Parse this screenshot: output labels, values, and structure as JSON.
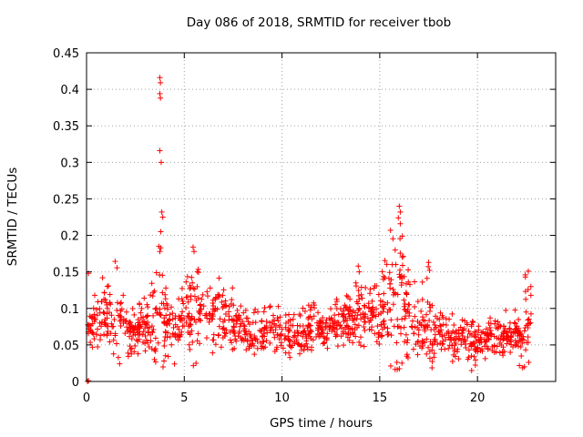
{
  "chart_data": {
    "type": "scatter",
    "title": "Day 086 of 2018, SRMTID for receiver tbob",
    "xlabel": "GPS time / hours",
    "ylabel": "SRMTID / TECUs",
    "xlim": [
      0,
      24
    ],
    "ylim": [
      0,
      0.45
    ],
    "xticks": [
      "0",
      "5",
      "10",
      "15",
      "20"
    ],
    "xtick_values": [
      0,
      5,
      10,
      15,
      20
    ],
    "yticks": [
      "0",
      "0.05",
      "0.1",
      "0.15",
      "0.2",
      "0.25",
      "0.3",
      "0.35",
      "0.4",
      "0.45"
    ],
    "ytick_values": [
      0,
      0.05,
      0.1,
      0.15,
      0.2,
      0.25,
      0.3,
      0.35,
      0.4,
      0.45
    ],
    "grid": true,
    "marker": "+",
    "marker_color": "#ff0000",
    "x_span": [
      0.05,
      22.75
    ],
    "profile": [
      [
        0.0,
        0.07,
        0.09
      ],
      [
        0.5,
        0.08,
        0.15
      ],
      [
        1.0,
        0.085,
        0.14
      ],
      [
        1.5,
        0.085,
        0.17
      ],
      [
        2.0,
        0.07,
        0.13
      ],
      [
        2.5,
        0.065,
        0.1
      ],
      [
        3.0,
        0.075,
        0.12
      ],
      [
        3.5,
        0.085,
        0.21
      ],
      [
        3.8,
        0.09,
        0.23
      ],
      [
        4.0,
        0.07,
        0.14
      ],
      [
        4.5,
        0.075,
        0.12
      ],
      [
        5.0,
        0.08,
        0.13
      ],
      [
        5.5,
        0.085,
        0.18
      ],
      [
        6.0,
        0.08,
        0.14
      ],
      [
        6.5,
        0.085,
        0.155
      ],
      [
        7.0,
        0.085,
        0.15
      ],
      [
        7.5,
        0.08,
        0.14
      ],
      [
        8.0,
        0.065,
        0.1
      ],
      [
        8.5,
        0.06,
        0.1
      ],
      [
        9.0,
        0.065,
        0.1
      ],
      [
        9.5,
        0.07,
        0.11
      ],
      [
        10.0,
        0.06,
        0.1
      ],
      [
        10.5,
        0.055,
        0.09
      ],
      [
        11.0,
        0.06,
        0.1
      ],
      [
        11.5,
        0.07,
        0.11
      ],
      [
        12.0,
        0.075,
        0.11
      ],
      [
        12.5,
        0.07,
        0.11
      ],
      [
        13.0,
        0.08,
        0.12
      ],
      [
        13.5,
        0.085,
        0.14
      ],
      [
        14.0,
        0.08,
        0.14
      ],
      [
        14.5,
        0.085,
        0.13
      ],
      [
        15.0,
        0.09,
        0.15
      ],
      [
        15.5,
        0.1,
        0.2
      ],
      [
        16.0,
        0.1,
        0.24
      ],
      [
        16.5,
        0.085,
        0.15
      ],
      [
        17.0,
        0.075,
        0.13
      ],
      [
        17.5,
        0.07,
        0.16
      ],
      [
        18.0,
        0.065,
        0.12
      ],
      [
        18.5,
        0.06,
        0.11
      ],
      [
        19.0,
        0.06,
        0.1
      ],
      [
        19.5,
        0.055,
        0.09
      ],
      [
        20.0,
        0.05,
        0.085
      ],
      [
        20.5,
        0.055,
        0.09
      ],
      [
        21.0,
        0.06,
        0.1
      ],
      [
        21.5,
        0.065,
        0.1
      ],
      [
        22.0,
        0.06,
        0.1
      ],
      [
        22.5,
        0.07,
        0.15
      ],
      [
        22.75,
        0.09,
        0.15
      ]
    ],
    "notable_points": [
      {
        "x": 0.05,
        "y": 0.0
      },
      {
        "x": 0.1,
        "y": 0.001
      },
      {
        "x": 0.1,
        "y": 0.148
      },
      {
        "x": 3.75,
        "y": 0.416
      },
      {
        "x": 3.78,
        "y": 0.409
      },
      {
        "x": 3.75,
        "y": 0.394
      },
      {
        "x": 3.78,
        "y": 0.388
      },
      {
        "x": 3.75,
        "y": 0.316
      },
      {
        "x": 3.82,
        "y": 0.3
      },
      {
        "x": 3.85,
        "y": 0.232
      },
      {
        "x": 3.9,
        "y": 0.225
      },
      {
        "x": 3.8,
        "y": 0.205
      },
      {
        "x": 3.7,
        "y": 0.185
      },
      {
        "x": 3.75,
        "y": 0.178
      },
      {
        "x": 3.8,
        "y": 0.183
      },
      {
        "x": 5.45,
        "y": 0.184
      },
      {
        "x": 5.5,
        "y": 0.178
      },
      {
        "x": 16.0,
        "y": 0.24
      },
      {
        "x": 16.05,
        "y": 0.232
      },
      {
        "x": 15.95,
        "y": 0.224
      },
      {
        "x": 16.05,
        "y": 0.216
      },
      {
        "x": 15.55,
        "y": 0.207
      },
      {
        "x": 16.15,
        "y": 0.199
      },
      {
        "x": 17.5,
        "y": 0.163
      },
      {
        "x": 17.55,
        "y": 0.152
      },
      {
        "x": 13.9,
        "y": 0.158
      },
      {
        "x": 13.95,
        "y": 0.15
      },
      {
        "x": 22.6,
        "y": 0.151
      },
      {
        "x": 22.45,
        "y": 0.146
      },
      {
        "x": 4.5,
        "y": 0.024
      },
      {
        "x": 5.6,
        "y": 0.025
      },
      {
        "x": 19.7,
        "y": 0.015
      }
    ],
    "points_per_hour": 60,
    "seed": 86
  }
}
